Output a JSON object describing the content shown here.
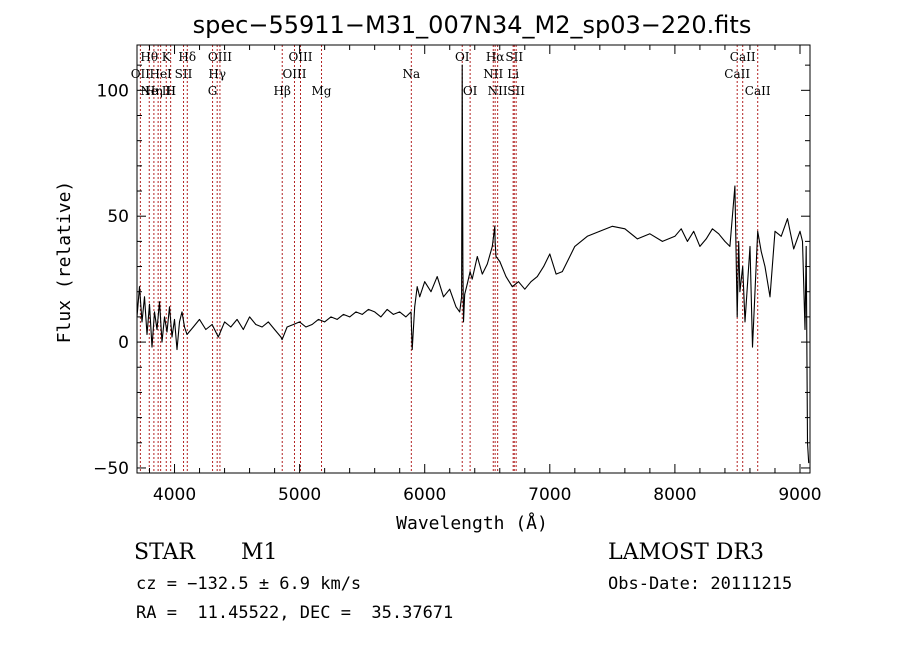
{
  "colors": {
    "axis": "#000000",
    "spectrum": "#000000",
    "lines": "#b22222"
  },
  "info": {
    "object_class": "STAR",
    "subclass": "M1",
    "redshift": "cz = −132.5 ± 6.9 km/s",
    "coords": "RA =  11.45522, DEC =  35.37671",
    "survey": "LAMOST DR3",
    "obs_date": "Obs-Date: 20111215"
  },
  "chart_data": {
    "type": "line",
    "title": "spec−55911−M31_007N34_M2_sp03−220.fits",
    "xlabel": "Wavelength (Å)",
    "ylabel": "Flux (relative)",
    "xlim": [
      3700,
      9080
    ],
    "ylim": [
      -52,
      118
    ],
    "xticks": [
      {
        "value": 4000,
        "label": "4000"
      },
      {
        "value": 5000,
        "label": "5000"
      },
      {
        "value": 6000,
        "label": "6000"
      },
      {
        "value": 7000,
        "label": "7000"
      },
      {
        "value": 8000,
        "label": "8000"
      },
      {
        "value": 9000,
        "label": "9000"
      }
    ],
    "yticks": [
      {
        "value": -50,
        "label": "−50"
      },
      {
        "value": 0,
        "label": "0"
      },
      {
        "value": 50,
        "label": "50"
      },
      {
        "value": 100,
        "label": "100"
      }
    ],
    "series": [
      {
        "name": "spectrum",
        "x": [
          3700,
          3720,
          3740,
          3760,
          3780,
          3800,
          3820,
          3840,
          3860,
          3880,
          3900,
          3920,
          3940,
          3960,
          3980,
          4000,
          4020,
          4040,
          4060,
          4080,
          4100,
          4150,
          4200,
          4250,
          4300,
          4350,
          4400,
          4450,
          4500,
          4550,
          4600,
          4650,
          4700,
          4750,
          4800,
          4850,
          4860,
          4900,
          4950,
          5000,
          5050,
          5100,
          5150,
          5200,
          5250,
          5300,
          5350,
          5400,
          5450,
          5500,
          5550,
          5600,
          5650,
          5700,
          5750,
          5800,
          5850,
          5890,
          5900,
          5920,
          5940,
          5960,
          6000,
          6050,
          6100,
          6150,
          6200,
          6250,
          6280,
          6295,
          6300,
          6305,
          6310,
          6320,
          6340,
          6363,
          6380,
          6420,
          6460,
          6500,
          6540,
          6560,
          6563,
          6570,
          6600,
          6650,
          6700,
          6750,
          6800,
          6850,
          6900,
          6950,
          7000,
          7050,
          7100,
          7150,
          7200,
          7300,
          7400,
          7500,
          7600,
          7700,
          7800,
          7900,
          8000,
          8050,
          8100,
          8150,
          8200,
          8250,
          8300,
          8350,
          8400,
          8440,
          8480,
          8498,
          8510,
          8520,
          8542,
          8560,
          8600,
          8620,
          8662,
          8690,
          8720,
          8760,
          8800,
          8850,
          8900,
          8950,
          9000,
          9020,
          9040,
          9050,
          9060,
          9070
        ],
        "values": [
          10,
          22,
          8,
          18,
          3,
          15,
          -2,
          12,
          5,
          16,
          0,
          10,
          4,
          14,
          2,
          9,
          -3,
          8,
          12,
          6,
          3,
          6,
          9,
          5,
          7,
          2,
          8,
          6,
          9,
          5,
          10,
          7,
          6,
          8,
          5,
          2,
          1,
          6,
          7,
          8,
          6,
          7,
          9,
          8,
          10,
          9,
          11,
          10,
          12,
          11,
          13,
          12,
          10,
          13,
          11,
          12,
          10,
          12,
          -3,
          14,
          22,
          18,
          24,
          20,
          26,
          18,
          21,
          14,
          12,
          18,
          110,
          30,
          8,
          19,
          23,
          28,
          25,
          34,
          27,
          31,
          38,
          46,
          40,
          34,
          32,
          26,
          22,
          24,
          21,
          24,
          26,
          30,
          35,
          27,
          28,
          33,
          38,
          42,
          44,
          46,
          45,
          41,
          43,
          40,
          42,
          45,
          40,
          44,
          38,
          41,
          45,
          43,
          40,
          38,
          62,
          10,
          40,
          20,
          30,
          8,
          38,
          -2,
          44,
          36,
          30,
          18,
          44,
          42,
          49,
          37,
          44,
          40,
          5,
          38,
          -40,
          -48
        ],
        "color": "#000000"
      }
    ],
    "annotations": [
      {
        "label": "Hθ",
        "wavelength": 3798,
        "row": 1
      },
      {
        "label": "OII",
        "wavelength": 3727,
        "row": 2
      },
      {
        "label": "Hη",
        "wavelength": 3835,
        "row": 3
      },
      {
        "label": "Ne III",
        "wavelength": 3869,
        "row": 3
      },
      {
        "label": "K",
        "wavelength": 3934,
        "row": 1
      },
      {
        "label": "HeI",
        "wavelength": 3889,
        "row": 2
      },
      {
        "label": "H",
        "wavelength": 3969,
        "row": 3
      },
      {
        "label": "Hδ",
        "wavelength": 4102,
        "row": 1
      },
      {
        "label": "SII",
        "wavelength": 4072,
        "row": 2
      },
      {
        "label": "OIII",
        "wavelength": 4363,
        "row": 1
      },
      {
        "label": "Hγ",
        "wavelength": 4341,
        "row": 2
      },
      {
        "label": "G",
        "wavelength": 4304,
        "row": 3
      },
      {
        "label": "Hβ",
        "wavelength": 4861,
        "row": 3
      },
      {
        "label": "OIII",
        "wavelength": 5007,
        "row": 1
      },
      {
        "label": "OIII",
        "wavelength": 4959,
        "row": 2
      },
      {
        "label": "Mg",
        "wavelength": 5175,
        "row": 3
      },
      {
        "label": "Na",
        "wavelength": 5893,
        "row": 2
      },
      {
        "label": "OI",
        "wavelength": 6300,
        "row": 1
      },
      {
        "label": "OI",
        "wavelength": 6363,
        "row": 3
      },
      {
        "label": "Hα",
        "wavelength": 6563,
        "row": 1
      },
      {
        "label": "NII",
        "wavelength": 6548,
        "row": 2
      },
      {
        "label": "NII",
        "wavelength": 6583,
        "row": 3
      },
      {
        "label": "SII",
        "wavelength": 6716,
        "row": 1
      },
      {
        "label": "Li",
        "wavelength": 6707,
        "row": 2
      },
      {
        "label": "SII",
        "wavelength": 6731,
        "row": 3
      },
      {
        "label": "CaII",
        "wavelength": 8542,
        "row": 1
      },
      {
        "label": "CaII",
        "wavelength": 8498,
        "row": 2
      },
      {
        "label": "CaII",
        "wavelength": 8662,
        "row": 3
      }
    ]
  }
}
